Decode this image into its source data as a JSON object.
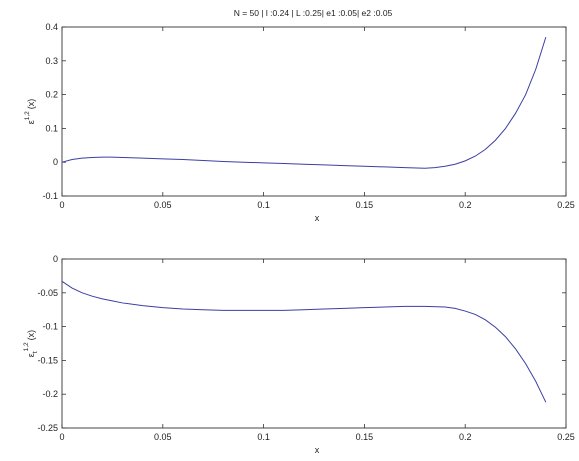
{
  "chart_data": [
    {
      "type": "line",
      "title": "N = 50 | l :0.24 | L :0.25| e1 :0.05| e2 :0.05",
      "xlabel": "x",
      "ylabel": {
        "base": "ε",
        "sup": "1,2",
        "arg": "(x)"
      },
      "xlim": [
        0,
        0.25
      ],
      "ylim": [
        -0.1,
        0.4
      ],
      "xticks": [
        "0",
        "0.05",
        "0.1",
        "0.15",
        "0.2",
        "0.25"
      ],
      "yticks": [
        "-0.1",
        "0",
        "0.1",
        "0.2",
        "0.3",
        "0.4"
      ],
      "grid": false,
      "line_color": "#3b3fa3",
      "series": [
        {
          "x": [
            0,
            0.005,
            0.01,
            0.015,
            0.02,
            0.025,
            0.03,
            0.04,
            0.05,
            0.06,
            0.07,
            0.08,
            0.09,
            0.1,
            0.11,
            0.12,
            0.13,
            0.14,
            0.15,
            0.16,
            0.17,
            0.18,
            0.185,
            0.19,
            0.195,
            0.2,
            0.205,
            0.21,
            0.215,
            0.22,
            0.225,
            0.23,
            0.235,
            0.24
          ],
          "y": [
            0.0,
            0.008,
            0.012,
            0.014,
            0.015,
            0.015,
            0.014,
            0.012,
            0.01,
            0.008,
            0.005,
            0.002,
            0.0,
            -0.002,
            -0.004,
            -0.006,
            -0.008,
            -0.01,
            -0.012,
            -0.014,
            -0.016,
            -0.018,
            -0.016,
            -0.012,
            -0.006,
            0.004,
            0.018,
            0.038,
            0.065,
            0.1,
            0.145,
            0.2,
            0.275,
            0.37
          ]
        }
      ]
    },
    {
      "type": "line",
      "title": "",
      "xlabel": "x",
      "ylabel": {
        "base": "ε",
        "sub": "t",
        "sup": "1,2",
        "arg": "(x)"
      },
      "xlim": [
        0,
        0.25
      ],
      "ylim": [
        -0.25,
        0
      ],
      "xticks": [
        "0",
        "0.05",
        "0.1",
        "0.15",
        "0.2",
        "0.25"
      ],
      "yticks": [
        "-0.25",
        "-0.2",
        "-0.15",
        "-0.1",
        "-0.05",
        "0"
      ],
      "grid": false,
      "line_color": "#3b3fa3",
      "series": [
        {
          "x": [
            0,
            0.005,
            0.01,
            0.015,
            0.02,
            0.025,
            0.03,
            0.04,
            0.05,
            0.06,
            0.07,
            0.08,
            0.09,
            0.1,
            0.11,
            0.12,
            0.13,
            0.14,
            0.15,
            0.16,
            0.17,
            0.18,
            0.19,
            0.195,
            0.2,
            0.205,
            0.21,
            0.215,
            0.22,
            0.225,
            0.23,
            0.235,
            0.24
          ],
          "y": [
            -0.033,
            -0.043,
            -0.05,
            -0.055,
            -0.059,
            -0.062,
            -0.065,
            -0.069,
            -0.072,
            -0.074,
            -0.075,
            -0.076,
            -0.076,
            -0.076,
            -0.076,
            -0.075,
            -0.074,
            -0.073,
            -0.072,
            -0.071,
            -0.07,
            -0.07,
            -0.071,
            -0.073,
            -0.077,
            -0.082,
            -0.09,
            -0.101,
            -0.115,
            -0.133,
            -0.155,
            -0.181,
            -0.212
          ]
        }
      ]
    }
  ]
}
